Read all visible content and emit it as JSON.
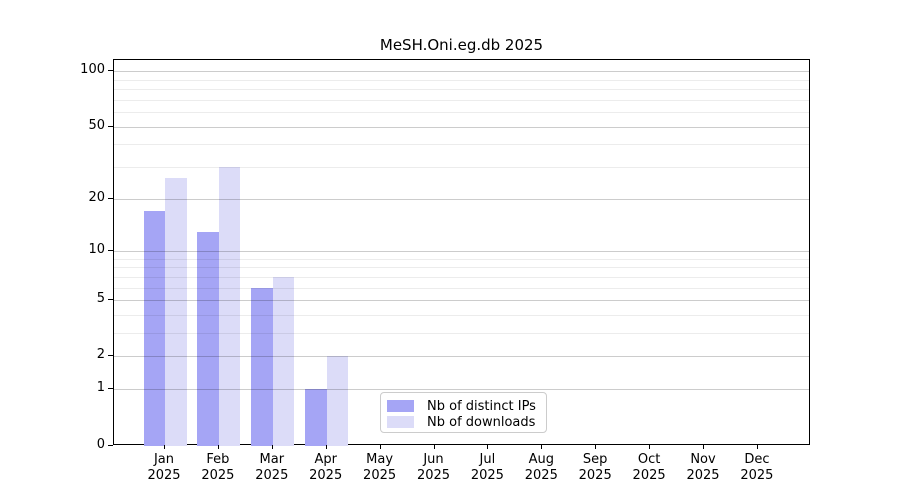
{
  "chart": {
    "title": "MeSH.Oni.eg.db 2025"
  },
  "chart_data": {
    "type": "bar",
    "title": "MeSH.Oni.eg.db 2025",
    "scale": "log1p",
    "grid": "horizontal",
    "categories": [
      "Jan",
      "Feb",
      "Mar",
      "Apr",
      "May",
      "Jun",
      "Jul",
      "Aug",
      "Sep",
      "Oct",
      "Nov",
      "Dec"
    ],
    "year_label": "2025",
    "series": [
      {
        "name": "Nb of distinct IPs",
        "color": "#a5a5f5",
        "values": [
          17,
          13,
          6,
          1,
          0,
          0,
          0,
          0,
          0,
          0,
          0,
          0
        ]
      },
      {
        "name": "Nb of downloads",
        "color": "#dcdcf8",
        "values": [
          26,
          30,
          7,
          2,
          0,
          0,
          0,
          0,
          0,
          0,
          0,
          0
        ]
      }
    ],
    "y_major_ticks": [
      100,
      50,
      20,
      10,
      5,
      2,
      1,
      0
    ],
    "y_minor_gridlines": [
      90,
      80,
      70,
      60,
      40,
      30,
      9,
      8,
      7,
      6,
      4,
      3
    ],
    "ylim": [
      0,
      115
    ],
    "legend_position": "lower center",
    "axis_color": "#000000",
    "background_color": "#ffffff"
  }
}
